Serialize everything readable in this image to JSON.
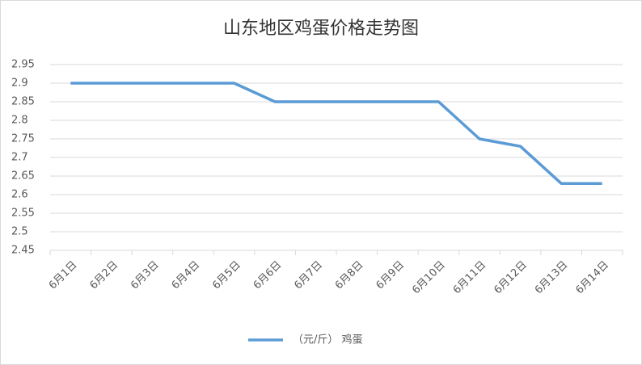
{
  "chart_data": {
    "type": "line",
    "title": "山东地区鸡蛋价格走势图",
    "categories": [
      "6月1日",
      "6月2日",
      "6月3日",
      "6月4日",
      "6月5日",
      "6月6日",
      "6月7日",
      "6月8日",
      "6月9日",
      "6月10日",
      "6月11日",
      "6月12日",
      "6月13日",
      "6月14日"
    ],
    "series": [
      {
        "name": "（元/斤） 鸡蛋",
        "color": "#5b9bd5",
        "values": [
          2.9,
          2.9,
          2.9,
          2.9,
          2.9,
          2.85,
          2.85,
          2.85,
          2.85,
          2.85,
          2.75,
          2.73,
          2.63,
          2.63
        ]
      }
    ],
    "ylim": [
      2.45,
      2.95
    ],
    "yticks": [
      2.45,
      2.5,
      2.55,
      2.6,
      2.65,
      2.7,
      2.75,
      2.8,
      2.85,
      2.9,
      2.95
    ],
    "grid": true,
    "legend": "bottom"
  }
}
